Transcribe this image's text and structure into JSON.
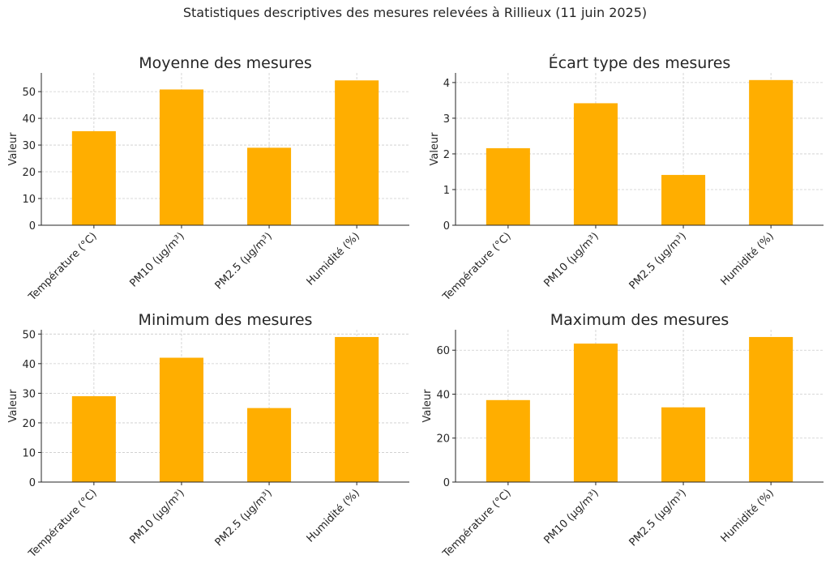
{
  "suptitle": "Statistiques descriptives des mesures relevées à Rillieux (11 juin 2025)",
  "colors": {
    "bar": "#FFAE00",
    "grid": "#cccccc",
    "axis": "#262626"
  },
  "chart_data": [
    {
      "type": "bar",
      "title": "Moyenne des mesures",
      "ylabel": "Valeur",
      "xlabel": "",
      "categories": [
        "Température (°C)",
        "PM10 (µg/m³)",
        "PM2.5 (µg/m³)",
        "Humidité (%)"
      ],
      "values": [
        35.2,
        50.8,
        29.0,
        54.2
      ],
      "ylim": [
        0,
        57
      ],
      "yticks": [
        0,
        10,
        20,
        30,
        40,
        50
      ],
      "grid": true
    },
    {
      "type": "bar",
      "title": "Écart type des mesures",
      "ylabel": "Valeur",
      "xlabel": "",
      "categories": [
        "Température (°C)",
        "PM10 (µg/m³)",
        "PM2.5 (µg/m³)",
        "Humidité (%)"
      ],
      "values": [
        2.16,
        3.42,
        1.41,
        4.07
      ],
      "ylim": [
        0,
        4.27
      ],
      "yticks": [
        0,
        1,
        2,
        3,
        4
      ],
      "grid": true
    },
    {
      "type": "bar",
      "title": "Minimum des mesures",
      "ylabel": "Valeur",
      "xlabel": "",
      "categories": [
        "Température (°C)",
        "PM10 (µg/m³)",
        "PM2.5 (µg/m³)",
        "Humidité (%)"
      ],
      "values": [
        29,
        42,
        25,
        49
      ],
      "ylim": [
        0,
        51.45
      ],
      "yticks": [
        0,
        10,
        20,
        30,
        40,
        50
      ],
      "grid": true
    },
    {
      "type": "bar",
      "title": "Maximum des mesures",
      "ylabel": "Valeur",
      "xlabel": "",
      "categories": [
        "Température (°C)",
        "PM10 (µg/m³)",
        "PM2.5 (µg/m³)",
        "Humidité (%)"
      ],
      "values": [
        37.3,
        63,
        34,
        66
      ],
      "ylim": [
        0,
        69.3
      ],
      "yticks": [
        0,
        20,
        40,
        60
      ],
      "grid": true
    }
  ]
}
